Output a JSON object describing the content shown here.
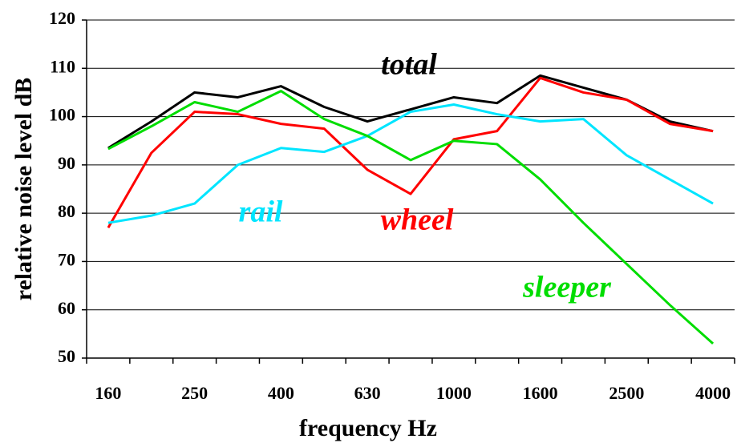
{
  "chart_data": {
    "type": "line",
    "xlabel": "frequency Hz",
    "ylabel": "relative noise level dB",
    "categories": [
      "160",
      null,
      "250",
      null,
      "400",
      null,
      "630",
      null,
      "1000",
      null,
      "1600",
      null,
      "2500",
      null,
      "4000"
    ],
    "series": [
      {
        "name": "total",
        "color": "#000000",
        "values": [
          93.5,
          99,
          105,
          104,
          106.3,
          102,
          99,
          101.5,
          104,
          102.8,
          108.5,
          106,
          103.5,
          99,
          97
        ]
      },
      {
        "name": "wheel",
        "color": "#ff0000",
        "values": [
          77,
          92.5,
          101,
          100.5,
          98.5,
          97.5,
          89,
          84,
          95.3,
          97,
          108,
          105,
          103.5,
          98.5,
          97
        ]
      },
      {
        "name": "rail",
        "color": "#00e5ff",
        "values": [
          78,
          79.5,
          82,
          90,
          93.5,
          92.7,
          96,
          101,
          102.5,
          100.5,
          99,
          99.5,
          92,
          87,
          82
        ]
      },
      {
        "name": "sleeper",
        "color": "#00dd00",
        "values": [
          93.3,
          98,
          103,
          101,
          105.3,
          99.5,
          96,
          91,
          95,
          94.3,
          87,
          78,
          69.5,
          61,
          53
        ]
      }
    ],
    "ylim": [
      50,
      120
    ],
    "yticks": [
      50,
      60,
      70,
      80,
      90,
      100,
      110,
      120
    ],
    "grid": true
  }
}
